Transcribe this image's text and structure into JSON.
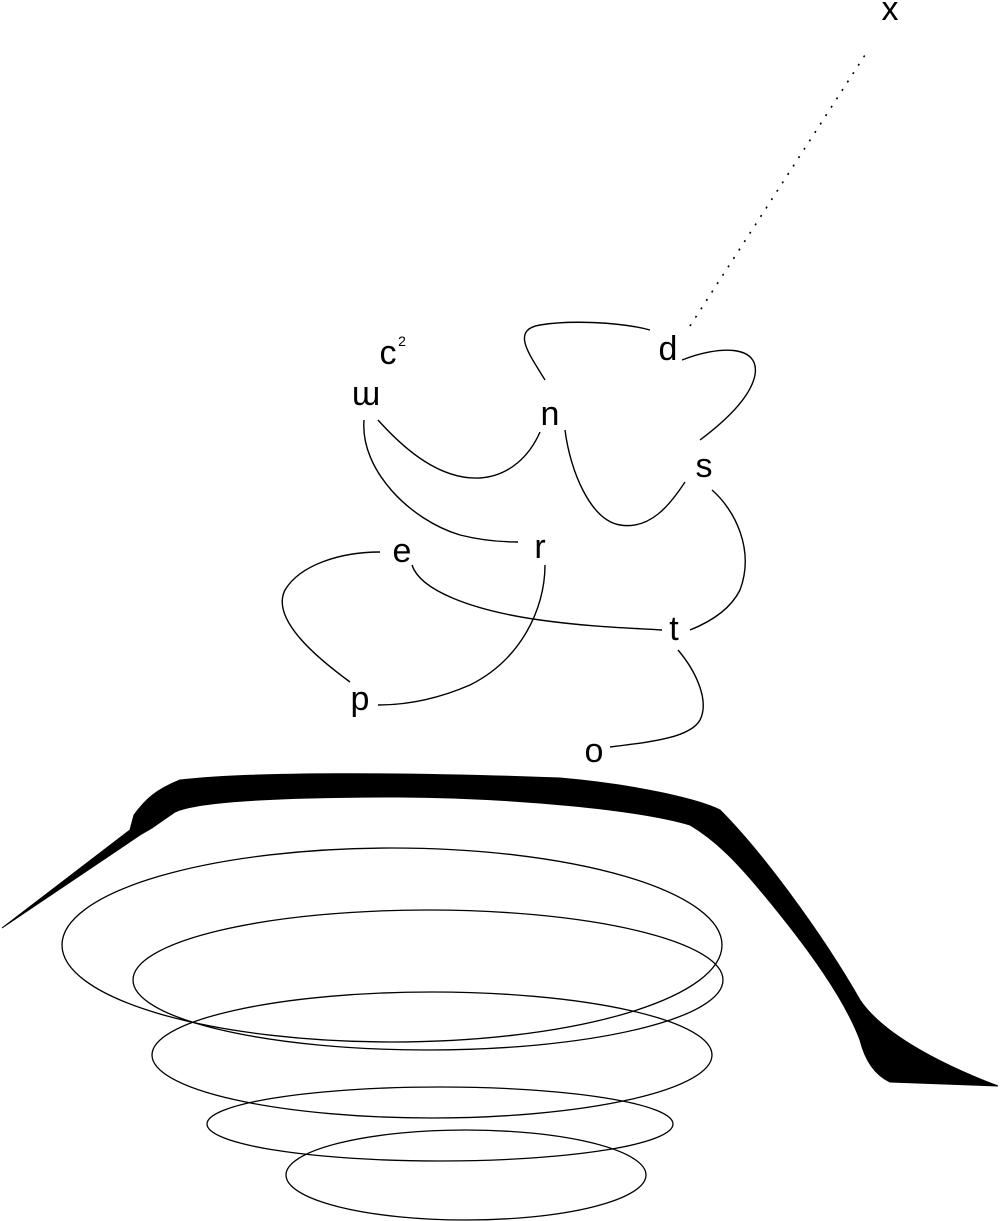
{
  "diagram": {
    "nodes": {
      "x": "x",
      "d": "d",
      "c": "c",
      "c_sup": "2",
      "w": "ɯ",
      "n": "n",
      "s": "s",
      "e": "e",
      "r": "r",
      "t": "t",
      "p": "p",
      "o": "o"
    },
    "edges": [
      {
        "from": "d",
        "to": "x",
        "style": "dotted"
      },
      {
        "from": "d",
        "to": "n",
        "style": "solid"
      },
      {
        "from": "d",
        "to": "s",
        "style": "solid"
      },
      {
        "from": "w",
        "to": "n",
        "style": "solid"
      },
      {
        "from": "w",
        "to": "r",
        "style": "solid"
      },
      {
        "from": "n",
        "to": "s",
        "style": "solid"
      },
      {
        "from": "s",
        "to": "t",
        "style": "solid"
      },
      {
        "from": "e",
        "to": "t",
        "style": "solid"
      },
      {
        "from": "e",
        "to": "p",
        "style": "solid"
      },
      {
        "from": "r",
        "to": "p",
        "style": "solid"
      },
      {
        "from": "t",
        "to": "o",
        "style": "solid"
      }
    ],
    "colors": {
      "ink": "#000000",
      "background": "#ffffff"
    }
  }
}
